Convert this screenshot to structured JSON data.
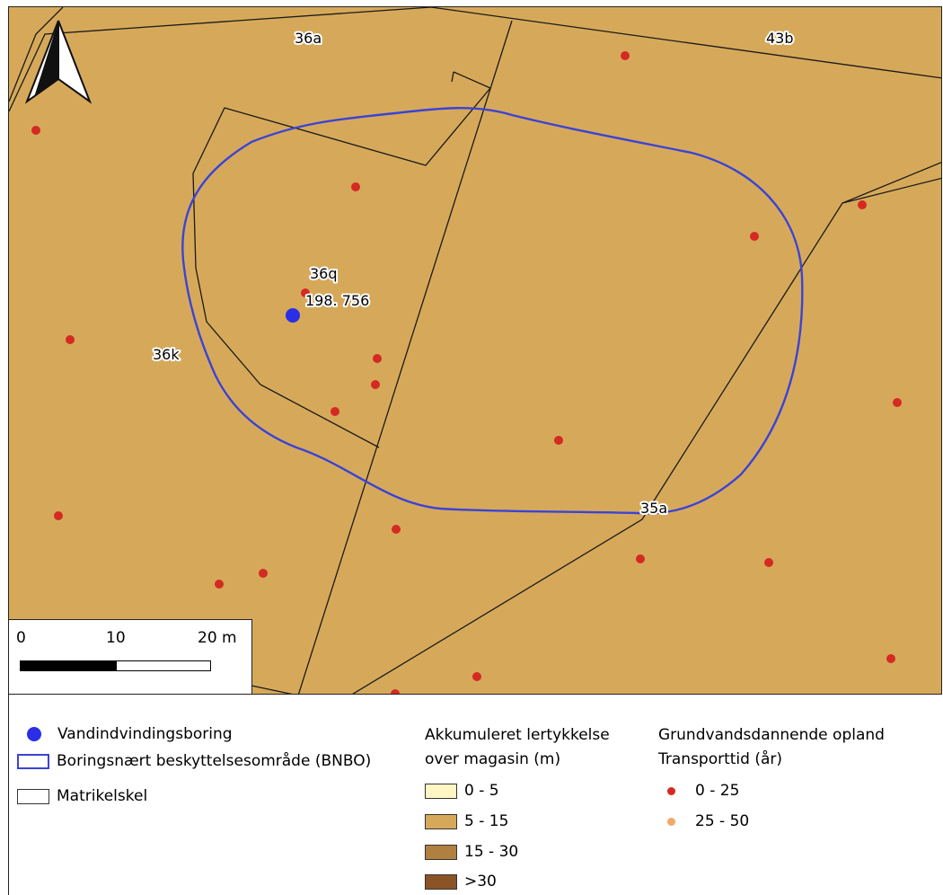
{
  "map": {
    "parcel_labels": [
      "36a",
      "43b",
      "36q",
      "36k",
      "35a"
    ],
    "well_label": "198.  756",
    "colors": {
      "background": "#d6a95a",
      "bnbo": "#3b43d6",
      "well": "#2a2ee6",
      "point_0_25": "#d42a22",
      "point_25_50": "#f3a868"
    }
  },
  "scalebar": {
    "ticks": [
      "0",
      "10",
      "20 m"
    ]
  },
  "legend": {
    "vandindvinding": "Vandindvindingsboring",
    "bnbo": "Boringsnært beskyttelsesområde (BNBO)",
    "matrikel": "Matrikelskel",
    "akkum_title_1": "Akkumuleret lertykkelse",
    "akkum_title_2": "over magasin (m)",
    "akkum_classes": [
      {
        "label": "0 - 5",
        "color": "#fff6c4"
      },
      {
        "label": "5 - 15",
        "color": "#d6a95a"
      },
      {
        "label": "15 - 30",
        "color": "#b08040"
      },
      {
        "label": ">30",
        "color": "#8a5426"
      }
    ],
    "grund_title_1": "Grundvandsdannende opland",
    "grund_title_2": "Transporttid (år)",
    "grund_classes": [
      {
        "label": "0 - 25",
        "color": "#d42a22"
      },
      {
        "label": "25 - 50",
        "color": "#f3a868"
      }
    ]
  }
}
